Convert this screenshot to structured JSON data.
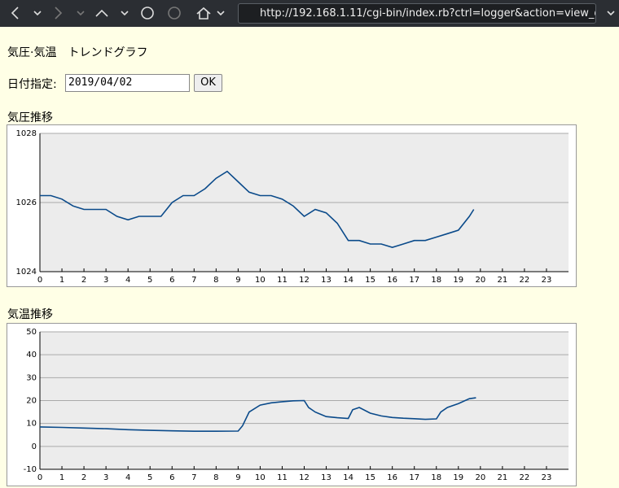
{
  "browser": {
    "url": "http://192.168.1.11/cgi-bin/index.rb?ctrl=logger&action=view_gra"
  },
  "page": {
    "heading": "気圧·気温　トレンドグラフ",
    "date_label": "日付指定:",
    "date_value": "2019/04/02",
    "button": "OK"
  },
  "chart_data": [
    {
      "type": "line",
      "title": "気圧推移",
      "color": "#0a4a8a",
      "grid": true,
      "x": [
        0,
        0.5,
        1,
        1.5,
        2,
        2.5,
        3,
        3.5,
        4,
        4.5,
        5,
        5.5,
        6,
        6.5,
        7,
        7.5,
        8,
        8.5,
        9,
        9.5,
        10,
        10.5,
        11,
        11.5,
        12,
        12.5,
        13,
        13.5,
        14,
        14.5,
        15,
        15.5,
        16,
        16.5,
        17,
        17.5,
        18,
        18.5,
        19,
        19.5,
        19.7
      ],
      "values": [
        1026.2,
        1026.2,
        1026.1,
        1025.9,
        1025.8,
        1025.8,
        1025.8,
        1025.6,
        1025.5,
        1025.6,
        1025.6,
        1025.6,
        1026.0,
        1026.2,
        1026.2,
        1026.4,
        1026.7,
        1026.9,
        1026.6,
        1026.3,
        1026.2,
        1026.2,
        1026.1,
        1025.9,
        1025.6,
        1025.8,
        1025.7,
        1025.4,
        1024.9,
        1024.9,
        1024.8,
        1024.8,
        1024.7,
        1024.8,
        1024.9,
        1024.9,
        1025.0,
        1025.1,
        1025.2,
        1025.6,
        1025.8
      ],
      "xlim": [
        0,
        24
      ],
      "xticks": [
        0,
        1,
        2,
        3,
        4,
        5,
        6,
        7,
        8,
        9,
        10,
        11,
        12,
        13,
        14,
        15,
        16,
        17,
        18,
        19,
        20,
        21,
        22,
        23
      ],
      "ylim": [
        1024,
        1028
      ],
      "yticks": [
        1024,
        1026,
        1028
      ]
    },
    {
      "type": "line",
      "title": "気温推移",
      "color": "#0a4a8a",
      "grid": true,
      "x": [
        0,
        1,
        2,
        3,
        4,
        5,
        6,
        7,
        8,
        9,
        9.2,
        9.5,
        10,
        10.5,
        11,
        11.5,
        12,
        12.2,
        12.5,
        13,
        13.5,
        14,
        14.2,
        14.5,
        15,
        15.5,
        16,
        16.5,
        17,
        17.5,
        18,
        18.2,
        18.5,
        19,
        19.5,
        19.8
      ],
      "values": [
        8.5,
        8.3,
        8,
        7.7,
        7.3,
        7,
        6.8,
        6.6,
        6.6,
        6.7,
        9,
        15,
        18,
        19,
        19.5,
        19.9,
        20,
        17,
        15,
        13,
        12.5,
        12.2,
        16,
        17,
        14.5,
        13.3,
        12.6,
        12.3,
        12.1,
        11.8,
        12,
        15,
        17,
        18.7,
        20.8,
        21.2
      ],
      "xlim": [
        0,
        24
      ],
      "xticks": [
        0,
        1,
        2,
        3,
        4,
        5,
        6,
        7,
        8,
        9,
        10,
        11,
        12,
        13,
        14,
        15,
        16,
        17,
        18,
        19,
        20,
        21,
        22,
        23
      ],
      "ylim": [
        -10,
        50
      ],
      "yticks": [
        -10,
        0,
        10,
        20,
        30,
        40,
        50
      ]
    }
  ]
}
